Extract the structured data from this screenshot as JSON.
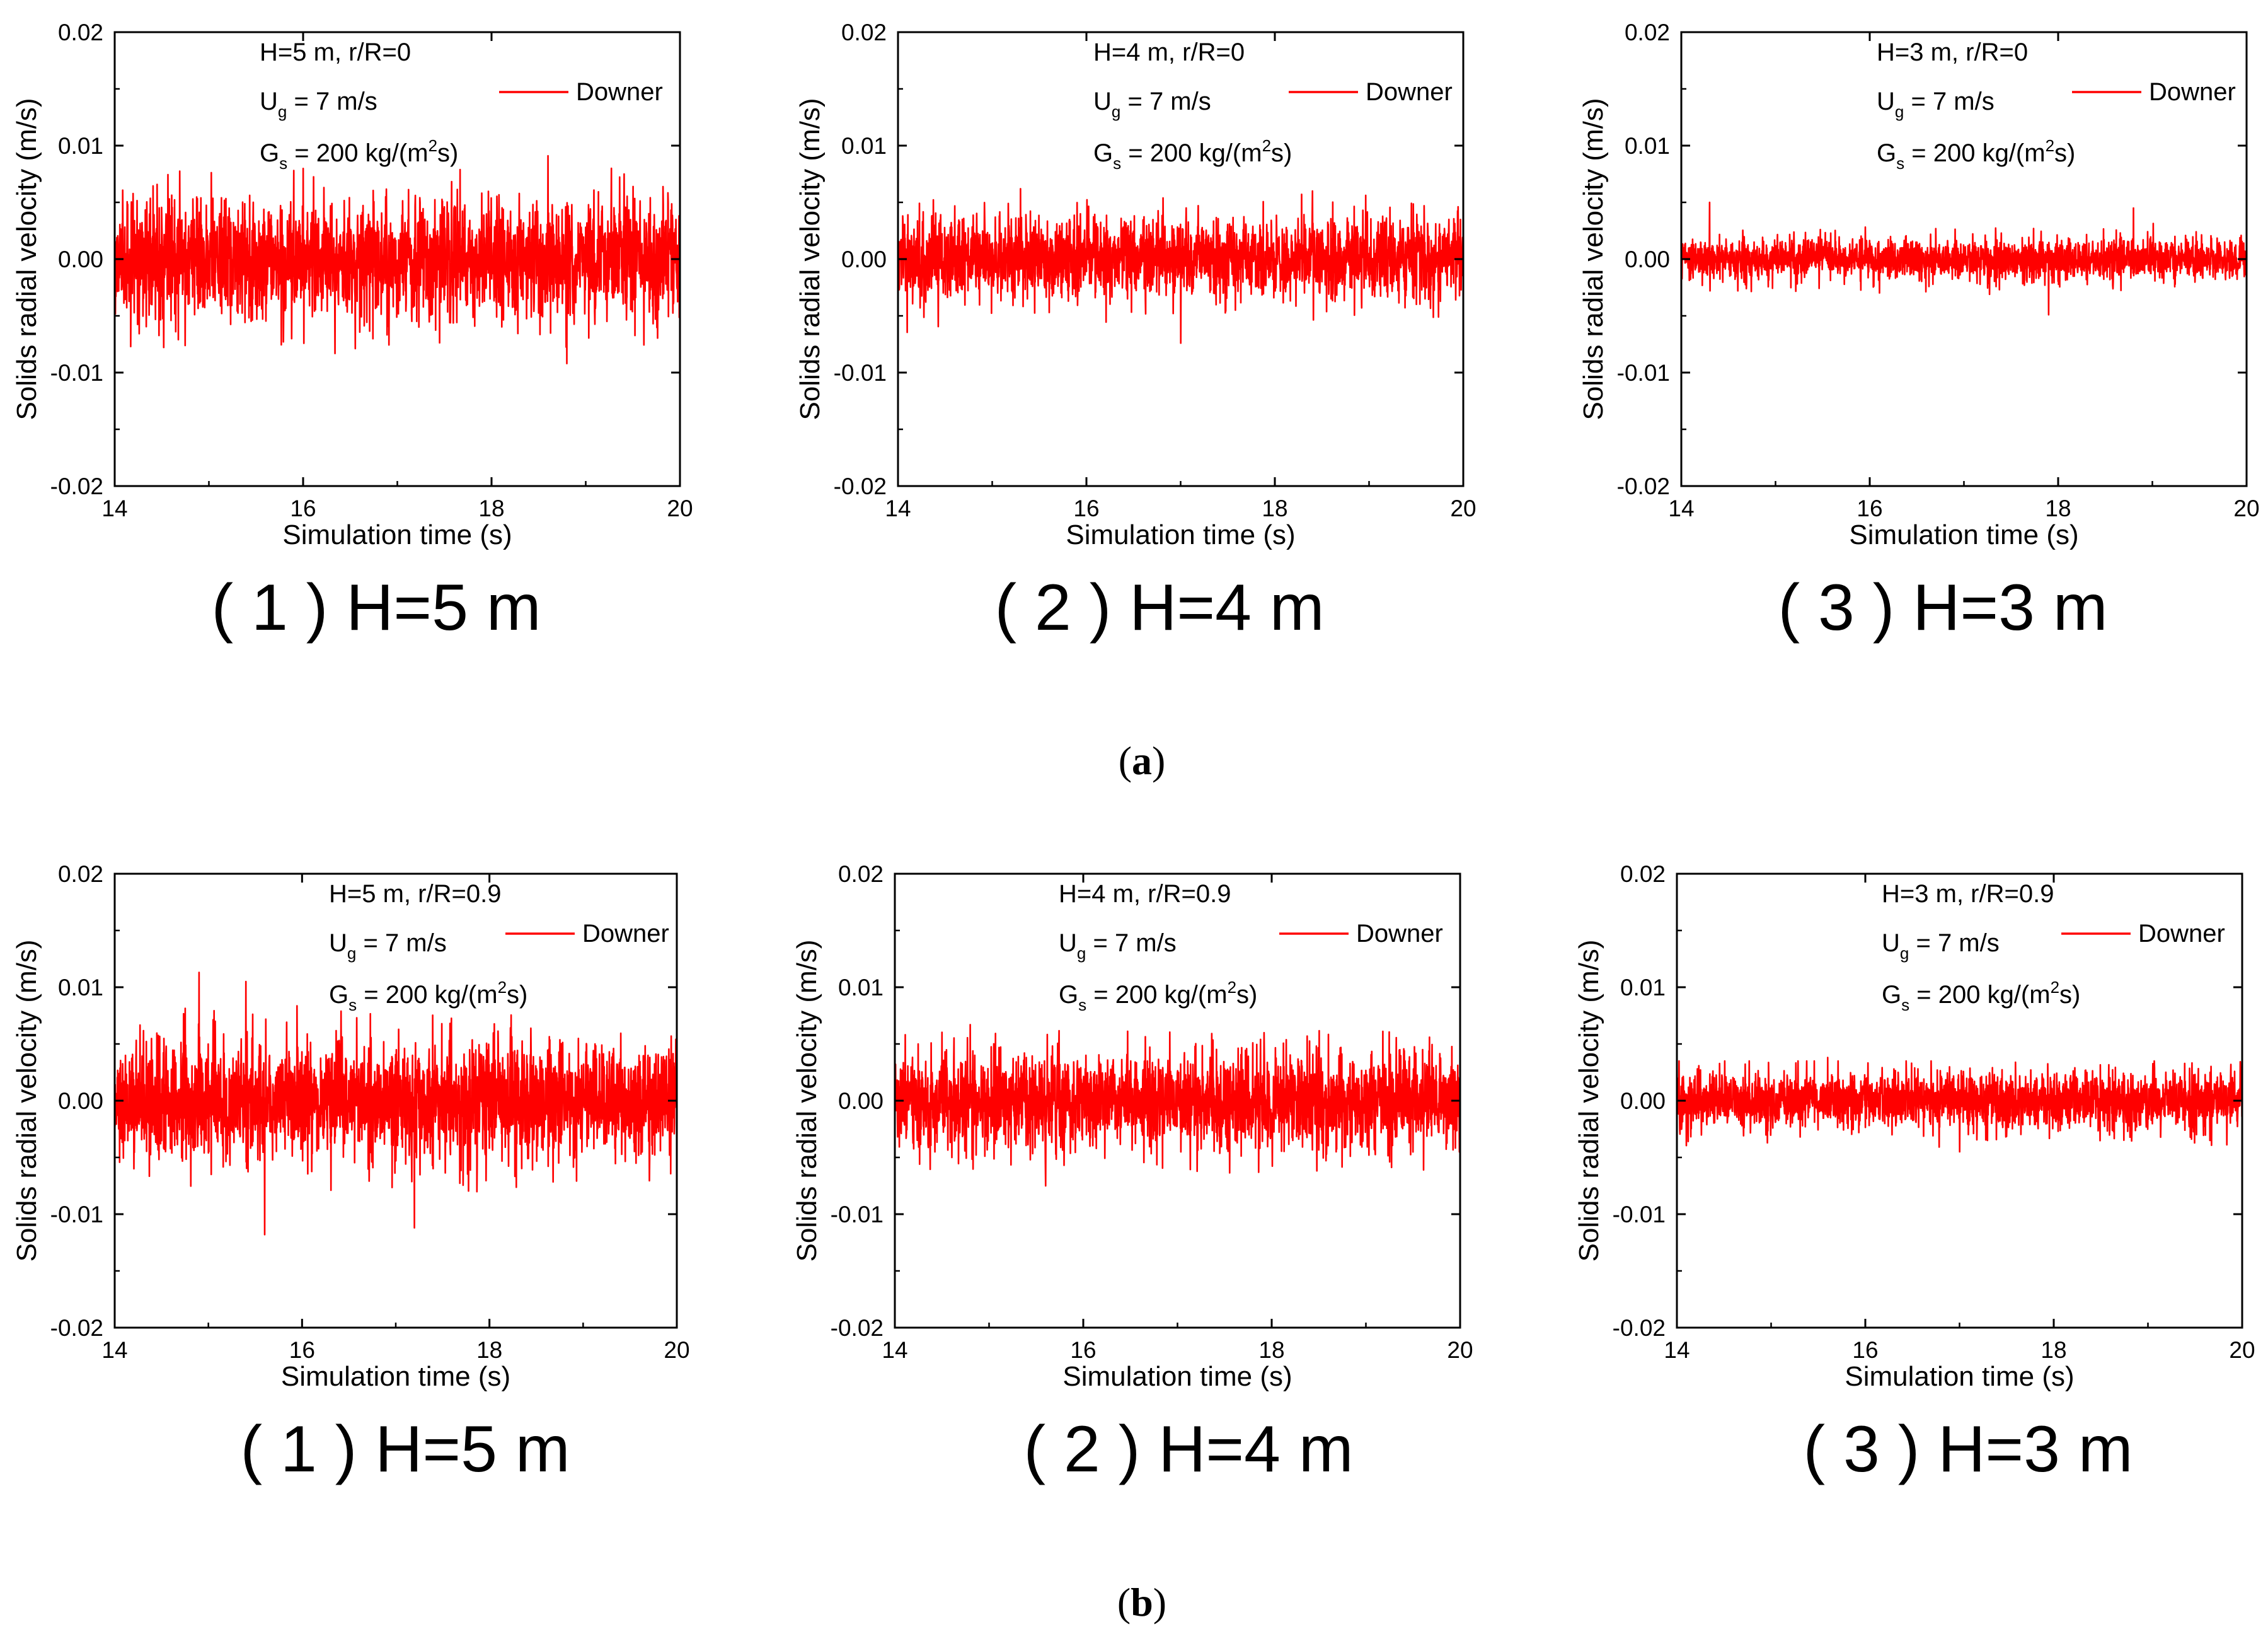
{
  "figure": {
    "group_labels": [
      {
        "open": "(",
        "letter": "a",
        "close": ")"
      },
      {
        "open": "(",
        "letter": "b",
        "close": ")"
      }
    ]
  },
  "panels": [
    {
      "caption": "( 1 ) H=5 m",
      "annotation_line1": "H=5 m, r/R=0",
      "ug_main": "U",
      "ug_sub": "g",
      "ug_rest": " = 7 m/s",
      "gs_main": "G",
      "gs_sub": "s",
      "gs_mid": " = 200 kg/(m",
      "gs_sup": "2",
      "gs_end": "s)"
    },
    {
      "caption": "( 2 ) H=4 m",
      "annotation_line1": "H=4 m, r/R=0",
      "ug_main": "U",
      "ug_sub": "g",
      "ug_rest": " = 7 m/s",
      "gs_main": "G",
      "gs_sub": "s",
      "gs_mid": " = 200 kg/(m",
      "gs_sup": "2",
      "gs_end": "s)"
    },
    {
      "caption": "( 3 ) H=3 m",
      "annotation_line1": "H=3 m, r/R=0",
      "ug_main": "U",
      "ug_sub": "g",
      "ug_rest": " = 7 m/s",
      "gs_main": "G",
      "gs_sub": "s",
      "gs_mid": " = 200 kg/(m",
      "gs_sup": "2",
      "gs_end": "s)"
    },
    {
      "caption": "( 1 ) H=5 m",
      "annotation_line1": "H=5 m, r/R=0.9",
      "ug_main": "U",
      "ug_sub": "g",
      "ug_rest": " = 7 m/s",
      "gs_main": "G",
      "gs_sub": "s",
      "gs_mid": " = 200 kg/(m",
      "gs_sup": "2",
      "gs_end": "s)"
    },
    {
      "caption": "( 2 ) H=4 m",
      "annotation_line1": "H=4 m, r/R=0.9",
      "ug_main": "U",
      "ug_sub": "g",
      "ug_rest": " = 7 m/s",
      "gs_main": "G",
      "gs_sub": "s",
      "gs_mid": " = 200 kg/(m",
      "gs_sup": "2",
      "gs_end": "s)"
    },
    {
      "caption": "( 3 ) H=3 m",
      "annotation_line1": "H=3 m, r/R=0.9",
      "ug_main": "U",
      "ug_sub": "g",
      "ug_rest": " = 7 m/s",
      "gs_main": "G",
      "gs_sub": "s",
      "gs_mid": " = 200 kg/(m",
      "gs_sup": "2",
      "gs_end": "s)"
    }
  ],
  "chart_data": [
    {
      "type": "line",
      "group": "a",
      "panel": "( 1 ) H=5 m",
      "title": "H=5 m, r/R=0",
      "xlabel": "Simulation time (s)",
      "ylabel": "Solids radial velocity (m/s)",
      "xlim": [
        14,
        20
      ],
      "ylim": [
        -0.02,
        0.02
      ],
      "x_ticks": [
        14,
        16,
        18,
        20
      ],
      "y_ticks": [
        0.02,
        0.01,
        0.0,
        -0.01,
        -0.02
      ],
      "x_tick_labels": [
        "14",
        "16",
        "18",
        "20"
      ],
      "y_tick_labels": [
        "0.02",
        "0.01",
        "0.00",
        "-0.01",
        "-0.02"
      ],
      "legend": "top-right",
      "series": [
        {
          "name": "Downer",
          "color": "#ff0000",
          "mean": 0.0,
          "band": 0.0045,
          "spike_max": 0.0091,
          "spike_min": -0.0092,
          "peaks": [
            {
              "x": 18.6,
              "y": 0.0091
            },
            {
              "x": 18.8,
              "y": -0.0092
            },
            {
              "x": 15.9,
              "y": 0.0078
            }
          ]
        }
      ]
    },
    {
      "type": "line",
      "group": "a",
      "panel": "( 2 ) H=4 m",
      "title": "H=4 m, r/R=0",
      "xlabel": "Simulation time (s)",
      "ylabel": "Solids radial velocity (m/s)",
      "xlim": [
        14,
        20
      ],
      "ylim": [
        -0.02,
        0.02
      ],
      "x_ticks": [
        14,
        16,
        18,
        20
      ],
      "y_ticks": [
        0.02,
        0.01,
        0.0,
        -0.01,
        -0.02
      ],
      "x_tick_labels": [
        "14",
        "16",
        "18",
        "20"
      ],
      "y_tick_labels": [
        "0.02",
        "0.01",
        "0.00",
        "-0.01",
        "-0.02"
      ],
      "legend": "top-right",
      "series": [
        {
          "name": "Downer",
          "color": "#ff0000",
          "mean": 0.0,
          "band": 0.003,
          "spike_max": 0.0062,
          "spike_min": -0.0074,
          "peaks": [
            {
              "x": 15.3,
              "y": 0.0062
            },
            {
              "x": 18.4,
              "y": 0.006
            },
            {
              "x": 17.0,
              "y": -0.0074
            }
          ]
        }
      ]
    },
    {
      "type": "line",
      "group": "a",
      "panel": "( 3 ) H=3 m",
      "title": "H=3 m, r/R=0",
      "xlabel": "Simulation time (s)",
      "ylabel": "Solids radial velocity (m/s)",
      "xlim": [
        14,
        20
      ],
      "ylim": [
        -0.02,
        0.02
      ],
      "x_ticks": [
        14,
        16,
        18,
        20
      ],
      "y_ticks": [
        0.02,
        0.01,
        0.0,
        -0.01,
        -0.02
      ],
      "x_tick_labels": [
        "14",
        "16",
        "18",
        "20"
      ],
      "y_tick_labels": [
        "0.02",
        "0.01",
        "0.00",
        "-0.01",
        "-0.02"
      ],
      "legend": "top-right",
      "series": [
        {
          "name": "Downer",
          "color": "#ff0000",
          "mean": 0.0,
          "band": 0.0016,
          "spike_max": 0.005,
          "spike_min": -0.0049,
          "peaks": [
            {
              "x": 14.3,
              "y": 0.005
            },
            {
              "x": 17.9,
              "y": -0.0049
            },
            {
              "x": 18.8,
              "y": 0.0045
            }
          ]
        }
      ]
    },
    {
      "type": "line",
      "group": "b",
      "panel": "( 1 ) H=5 m",
      "title": "H=5 m, r/R=0.9",
      "xlabel": "Simulation time (s)",
      "ylabel": "Solids radial velocity (m/s)",
      "xlim": [
        14,
        20
      ],
      "ylim": [
        -0.02,
        0.02
      ],
      "x_ticks": [
        14,
        16,
        18,
        20
      ],
      "y_ticks": [
        0.02,
        0.01,
        0.0,
        -0.01,
        -0.02
      ],
      "x_tick_labels": [
        "14",
        "16",
        "18",
        "20"
      ],
      "y_tick_labels": [
        "0.02",
        "0.01",
        "0.00",
        "-0.01",
        "-0.02"
      ],
      "legend": "top-right",
      "series": [
        {
          "name": "Downer",
          "color": "#ff0000",
          "mean": 0.0,
          "band": 0.0045,
          "spike_max": 0.0113,
          "spike_min": -0.0118,
          "peaks": [
            {
              "x": 14.9,
              "y": 0.0113
            },
            {
              "x": 15.6,
              "y": -0.0118
            },
            {
              "x": 17.2,
              "y": -0.0112
            },
            {
              "x": 15.4,
              "y": 0.0105
            }
          ]
        }
      ]
    },
    {
      "type": "line",
      "group": "b",
      "panel": "( 2 ) H=4 m",
      "title": "H=4 m, r/R=0.9",
      "xlabel": "Simulation time (s)",
      "ylabel": "Solids radial velocity (m/s)",
      "xlim": [
        14,
        20
      ],
      "ylim": [
        -0.02,
        0.02
      ],
      "x_ticks": [
        14,
        16,
        18,
        20
      ],
      "y_ticks": [
        0.02,
        0.01,
        0.0,
        -0.01,
        -0.02
      ],
      "x_tick_labels": [
        "14",
        "16",
        "18",
        "20"
      ],
      "y_tick_labels": [
        "0.02",
        "0.01",
        "0.00",
        "-0.01",
        "-0.02"
      ],
      "legend": "top-right",
      "series": [
        {
          "name": "Downer",
          "color": "#ff0000",
          "mean": 0.0,
          "band": 0.0035,
          "spike_max": 0.0067,
          "spike_min": -0.0075,
          "peaks": [
            {
              "x": 14.8,
              "y": 0.0067
            },
            {
              "x": 15.6,
              "y": -0.0075
            }
          ]
        }
      ]
    },
    {
      "type": "line",
      "group": "b",
      "panel": "( 3 ) H=3 m",
      "title": "H=3 m, r/R=0.9",
      "xlabel": "Simulation time (s)",
      "ylabel": "Solids radial velocity (m/s)",
      "xlim": [
        14,
        20
      ],
      "ylim": [
        -0.02,
        0.02
      ],
      "x_ticks": [
        14,
        16,
        18,
        20
      ],
      "y_ticks": [
        0.02,
        0.01,
        0.0,
        -0.01,
        -0.02
      ],
      "x_tick_labels": [
        "14",
        "16",
        "18",
        "20"
      ],
      "y_tick_labels": [
        "0.02",
        "0.01",
        "0.00",
        "-0.01",
        "-0.02"
      ],
      "legend": "top-right",
      "series": [
        {
          "name": "Downer",
          "color": "#ff0000",
          "mean": 0.0,
          "band": 0.0022,
          "spike_max": 0.0038,
          "spike_min": -0.0045,
          "peaks": [
            {
              "x": 15.6,
              "y": 0.0038
            },
            {
              "x": 17.0,
              "y": -0.0045
            }
          ]
        }
      ]
    }
  ]
}
